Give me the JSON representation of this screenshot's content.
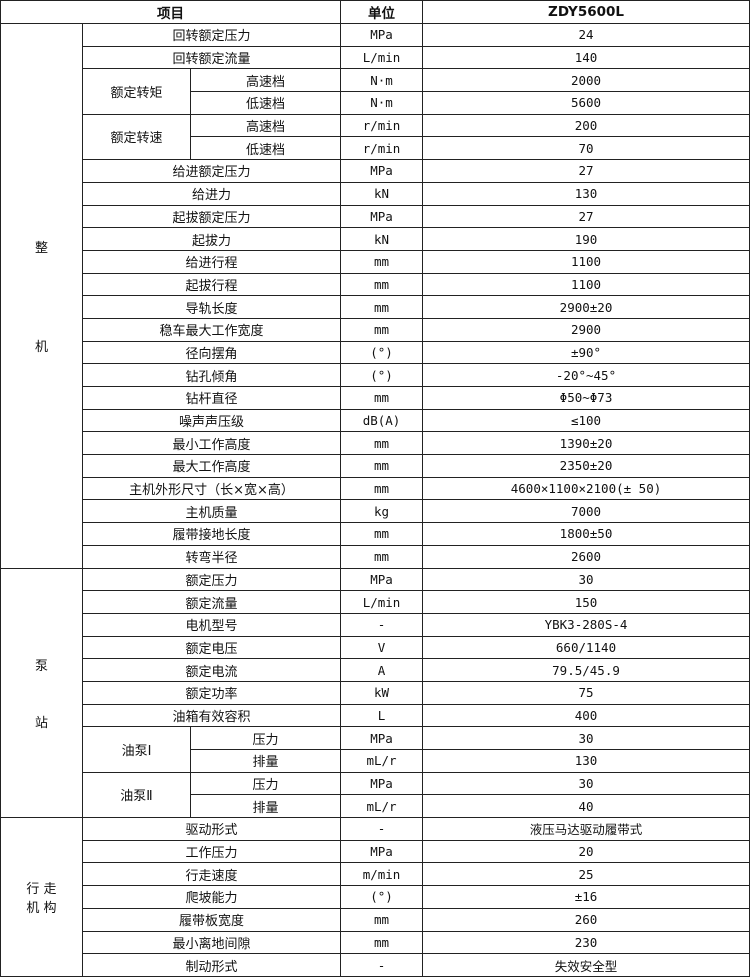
{
  "header": {
    "item": "项目",
    "unit": "单位",
    "model": "ZDY5600L"
  },
  "sections": [
    {
      "label_lines": [
        "整",
        "机"
      ],
      "label_gap": "80px",
      "rows": [
        {
          "item": "回转额定压力",
          "unit": "MPa",
          "value": "24"
        },
        {
          "item": "回转额定流量",
          "unit": "L/min",
          "value": "140"
        },
        {
          "sub": "额定转矩",
          "rows": [
            {
              "item": "高速档",
              "unit": "N·m",
              "value": "2000"
            },
            {
              "item": "低速档",
              "unit": "N·m",
              "value": "5600"
            }
          ]
        },
        {
          "sub": "额定转速",
          "rows": [
            {
              "item": "高速档",
              "unit": "r/min",
              "value": "200"
            },
            {
              "item": "低速档",
              "unit": "r/min",
              "value": "70"
            }
          ]
        },
        {
          "item": "给进额定压力",
          "unit": "MPa",
          "value": "27"
        },
        {
          "item": "给进力",
          "unit": "kN",
          "value": "130"
        },
        {
          "item": "起拔额定压力",
          "unit": "MPa",
          "value": "27"
        },
        {
          "item": "起拔力",
          "unit": "kN",
          "value": "190"
        },
        {
          "item": "给进行程",
          "unit": "mm",
          "value": "1100"
        },
        {
          "item": "起拔行程",
          "unit": "mm",
          "value": "1100"
        },
        {
          "item": "导轨长度",
          "unit": "mm",
          "value": "2900±20"
        },
        {
          "item": "稳车最大工作宽度",
          "unit": "mm",
          "value": "2900"
        },
        {
          "item": "径向摆角",
          "unit": "(°)",
          "value": "±90°"
        },
        {
          "item": "钻孔倾角",
          "unit": "(°)",
          "value": "-20°~45°"
        },
        {
          "item": "钻杆直径",
          "unit": "mm",
          "value": "Φ50~Φ73"
        },
        {
          "item": "噪声声压级",
          "unit": "dB(A)",
          "value": "≤100"
        },
        {
          "item": "最小工作高度",
          "unit": "mm",
          "value": "1390±20"
        },
        {
          "item": "最大工作高度",
          "unit": "mm",
          "value": "2350±20"
        },
        {
          "item": "主机外形尺寸（长×宽×高）",
          "unit": "mm",
          "value": "4600×1100×2100(± 50)"
        },
        {
          "item": "主机质量",
          "unit": "kg",
          "value": "7000"
        },
        {
          "item": "履带接地长度",
          "unit": "mm",
          "value": "1800±50"
        },
        {
          "item": "转弯半径",
          "unit": "mm",
          "value": "2600"
        }
      ]
    },
    {
      "label_lines": [
        "泵",
        "站"
      ],
      "label_gap": "38px",
      "rows": [
        {
          "item": "额定压力",
          "unit": "MPa",
          "value": "30"
        },
        {
          "item": "额定流量",
          "unit": "L/min",
          "value": "150"
        },
        {
          "item": "电机型号",
          "unit": "-",
          "value": "YBK3-280S-4"
        },
        {
          "item": "额定电压",
          "unit": "V",
          "value": "660/1140"
        },
        {
          "item": "额定电流",
          "unit": "A",
          "value": "79.5/45.9"
        },
        {
          "item": "额定功率",
          "unit": "kW",
          "value": "75"
        },
        {
          "item": "油箱有效容积",
          "unit": "L",
          "value": "400"
        },
        {
          "sub": "油泵Ⅰ",
          "rows": [
            {
              "item": "压力",
              "unit": "MPa",
              "value": "30"
            },
            {
              "item": "排量",
              "unit": "mL/r",
              "value": "130"
            }
          ]
        },
        {
          "sub": "油泵Ⅱ",
          "rows": [
            {
              "item": "压力",
              "unit": "MPa",
              "value": "30"
            },
            {
              "item": "排量",
              "unit": "mL/r",
              "value": "40"
            }
          ]
        }
      ]
    },
    {
      "label_lines": [
        "行 走",
        "机 构"
      ],
      "label_gap": "0px",
      "rows": [
        {
          "item": "驱动形式",
          "unit": "-",
          "value": "液压马达驱动履带式"
        },
        {
          "item": "工作压力",
          "unit": "MPa",
          "value": "20"
        },
        {
          "item": "行走速度",
          "unit": "m/min",
          "value": "25"
        },
        {
          "item": "爬坡能力",
          "unit": "(°)",
          "value": "±16"
        },
        {
          "item": "履带板宽度",
          "unit": "mm",
          "value": "260"
        },
        {
          "item": "最小离地间隙",
          "unit": "mm",
          "value": "230"
        },
        {
          "item": "制动形式",
          "unit": "-",
          "value": "失效安全型"
        }
      ]
    }
  ]
}
